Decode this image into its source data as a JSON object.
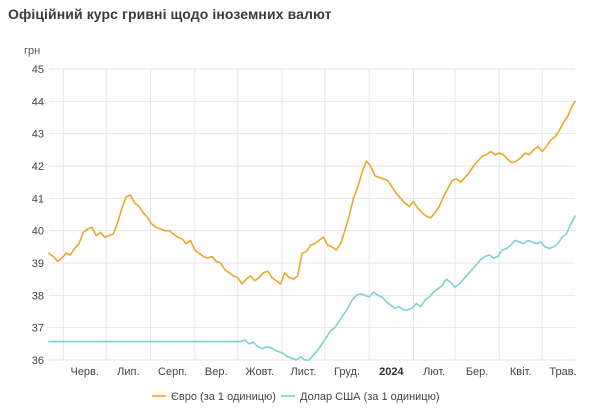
{
  "title": "Офіційний курс гривні щодо іноземних валют",
  "chart_data": {
    "type": "line",
    "ylabel": "грн",
    "ylim": [
      36,
      45
    ],
    "yticks": [
      36,
      37,
      38,
      39,
      40,
      41,
      42,
      43,
      44,
      45
    ],
    "xlim": [
      "2023-05-22",
      "2024-05-24"
    ],
    "xticks": [
      {
        "label": "Черв.",
        "date": "2023-06-01"
      },
      {
        "label": "Лип.",
        "date": "2023-07-01"
      },
      {
        "label": "Серп.",
        "date": "2023-08-01"
      },
      {
        "label": "Вер.",
        "date": "2023-09-01"
      },
      {
        "label": "Жовт.",
        "date": "2023-10-01"
      },
      {
        "label": "Лист.",
        "date": "2023-11-01"
      },
      {
        "label": "Груд.",
        "date": "2023-12-01"
      },
      {
        "label": "2024",
        "date": "2024-01-01",
        "bold": true
      },
      {
        "label": "Лют.",
        "date": "2024-02-01"
      },
      {
        "label": "Бер.",
        "date": "2024-03-01"
      },
      {
        "label": "Квіт.",
        "date": "2024-04-01"
      },
      {
        "label": "Трав.",
        "date": "2024-05-01"
      }
    ],
    "grid": true,
    "legend_position": "bottom",
    "series": [
      {
        "name": "Євро (за 1 одиницю)",
        "color": "#e8a82c",
        "points": [
          [
            "2023-05-22",
            39.3
          ],
          [
            "2023-05-25",
            39.2
          ],
          [
            "2023-05-28",
            39.05
          ],
          [
            "2023-05-31",
            39.15
          ],
          [
            "2023-06-03",
            39.3
          ],
          [
            "2023-06-06",
            39.25
          ],
          [
            "2023-06-09",
            39.45
          ],
          [
            "2023-06-12",
            39.6
          ],
          [
            "2023-06-15",
            39.95
          ],
          [
            "2023-06-18",
            40.05
          ],
          [
            "2023-06-21",
            40.1
          ],
          [
            "2023-06-24",
            39.85
          ],
          [
            "2023-06-27",
            39.95
          ],
          [
            "2023-06-30",
            39.8
          ],
          [
            "2023-07-03",
            39.85
          ],
          [
            "2023-07-06",
            39.9
          ],
          [
            "2023-07-09",
            40.25
          ],
          [
            "2023-07-12",
            40.7
          ],
          [
            "2023-07-15",
            41.05
          ],
          [
            "2023-07-18",
            41.1
          ],
          [
            "2023-07-21",
            40.85
          ],
          [
            "2023-07-24",
            40.75
          ],
          [
            "2023-07-27",
            40.55
          ],
          [
            "2023-07-30",
            40.4
          ],
          [
            "2023-08-02",
            40.2
          ],
          [
            "2023-08-05",
            40.1
          ],
          [
            "2023-08-08",
            40.05
          ],
          [
            "2023-08-11",
            40.0
          ],
          [
            "2023-08-14",
            40.0
          ],
          [
            "2023-08-17",
            39.9
          ],
          [
            "2023-08-20",
            39.8
          ],
          [
            "2023-08-23",
            39.75
          ],
          [
            "2023-08-26",
            39.6
          ],
          [
            "2023-08-29",
            39.7
          ],
          [
            "2023-09-01",
            39.4
          ],
          [
            "2023-09-04",
            39.3
          ],
          [
            "2023-09-07",
            39.2
          ],
          [
            "2023-09-10",
            39.15
          ],
          [
            "2023-09-13",
            39.2
          ],
          [
            "2023-09-16",
            39.05
          ],
          [
            "2023-09-19",
            39.0
          ],
          [
            "2023-09-22",
            38.8
          ],
          [
            "2023-09-25",
            38.7
          ],
          [
            "2023-09-28",
            38.6
          ],
          [
            "2023-10-01",
            38.55
          ],
          [
            "2023-10-04",
            38.35
          ],
          [
            "2023-10-07",
            38.5
          ],
          [
            "2023-10-10",
            38.6
          ],
          [
            "2023-10-13",
            38.45
          ],
          [
            "2023-10-16",
            38.55
          ],
          [
            "2023-10-19",
            38.7
          ],
          [
            "2023-10-22",
            38.75
          ],
          [
            "2023-10-25",
            38.55
          ],
          [
            "2023-10-28",
            38.45
          ],
          [
            "2023-10-31",
            38.35
          ],
          [
            "2023-11-03",
            38.7
          ],
          [
            "2023-11-06",
            38.55
          ],
          [
            "2023-11-09",
            38.5
          ],
          [
            "2023-11-12",
            38.6
          ],
          [
            "2023-11-15",
            39.3
          ],
          [
            "2023-11-18",
            39.35
          ],
          [
            "2023-11-21",
            39.55
          ],
          [
            "2023-11-24",
            39.6
          ],
          [
            "2023-11-27",
            39.7
          ],
          [
            "2023-11-30",
            39.8
          ],
          [
            "2023-12-03",
            39.55
          ],
          [
            "2023-12-06",
            39.5
          ],
          [
            "2023-12-09",
            39.4
          ],
          [
            "2023-12-12",
            39.6
          ],
          [
            "2023-12-15",
            40.0
          ],
          [
            "2023-12-18",
            40.45
          ],
          [
            "2023-12-21",
            41.0
          ],
          [
            "2023-12-24",
            41.35
          ],
          [
            "2023-12-27",
            41.8
          ],
          [
            "2023-12-30",
            42.15
          ],
          [
            "2024-01-02",
            42.0
          ],
          [
            "2024-01-05",
            41.7
          ],
          [
            "2024-01-08",
            41.65
          ],
          [
            "2024-01-11",
            41.6
          ],
          [
            "2024-01-14",
            41.55
          ],
          [
            "2024-01-17",
            41.35
          ],
          [
            "2024-01-20",
            41.15
          ],
          [
            "2024-01-23",
            41.0
          ],
          [
            "2024-01-26",
            40.85
          ],
          [
            "2024-01-29",
            40.75
          ],
          [
            "2024-02-01",
            40.9
          ],
          [
            "2024-02-04",
            40.7
          ],
          [
            "2024-02-07",
            40.55
          ],
          [
            "2024-02-10",
            40.45
          ],
          [
            "2024-02-13",
            40.4
          ],
          [
            "2024-02-16",
            40.55
          ],
          [
            "2024-02-19",
            40.75
          ],
          [
            "2024-02-22",
            41.05
          ],
          [
            "2024-02-25",
            41.3
          ],
          [
            "2024-02-28",
            41.55
          ],
          [
            "2024-03-02",
            41.6
          ],
          [
            "2024-03-05",
            41.5
          ],
          [
            "2024-03-08",
            41.65
          ],
          [
            "2024-03-11",
            41.8
          ],
          [
            "2024-03-14",
            42.0
          ],
          [
            "2024-03-17",
            42.15
          ],
          [
            "2024-03-20",
            42.3
          ],
          [
            "2024-03-23",
            42.35
          ],
          [
            "2024-03-26",
            42.45
          ],
          [
            "2024-03-29",
            42.35
          ],
          [
            "2024-04-01",
            42.4
          ],
          [
            "2024-04-04",
            42.35
          ],
          [
            "2024-04-07",
            42.2
          ],
          [
            "2024-04-10",
            42.1
          ],
          [
            "2024-04-13",
            42.15
          ],
          [
            "2024-04-16",
            42.25
          ],
          [
            "2024-04-19",
            42.4
          ],
          [
            "2024-04-22",
            42.35
          ],
          [
            "2024-04-25",
            42.5
          ],
          [
            "2024-04-28",
            42.6
          ],
          [
            "2024-05-01",
            42.45
          ],
          [
            "2024-05-04",
            42.6
          ],
          [
            "2024-05-07",
            42.8
          ],
          [
            "2024-05-10",
            42.9
          ],
          [
            "2024-05-13",
            43.1
          ],
          [
            "2024-05-16",
            43.35
          ],
          [
            "2024-05-19",
            43.55
          ],
          [
            "2024-05-22",
            43.85
          ],
          [
            "2024-05-24",
            44.0
          ]
        ]
      },
      {
        "name": "Долар США (за 1 одиницю)",
        "color": "#7fcfd3",
        "points": [
          [
            "2023-05-22",
            36.57
          ],
          [
            "2023-06-15",
            36.57
          ],
          [
            "2023-07-15",
            36.57
          ],
          [
            "2023-08-15",
            36.57
          ],
          [
            "2023-09-15",
            36.57
          ],
          [
            "2023-10-03",
            36.57
          ],
          [
            "2023-10-06",
            36.62
          ],
          [
            "2023-10-09",
            36.5
          ],
          [
            "2023-10-12",
            36.55
          ],
          [
            "2023-10-15",
            36.42
          ],
          [
            "2023-10-18",
            36.35
          ],
          [
            "2023-10-21",
            36.4
          ],
          [
            "2023-10-24",
            36.38
          ],
          [
            "2023-10-27",
            36.3
          ],
          [
            "2023-10-30",
            36.25
          ],
          [
            "2023-11-02",
            36.2
          ],
          [
            "2023-11-05",
            36.1
          ],
          [
            "2023-11-08",
            36.05
          ],
          [
            "2023-11-11",
            36.0
          ],
          [
            "2023-11-14",
            36.1
          ],
          [
            "2023-11-17",
            36.0
          ],
          [
            "2023-11-20",
            36.0
          ],
          [
            "2023-11-23",
            36.15
          ],
          [
            "2023-11-26",
            36.3
          ],
          [
            "2023-11-29",
            36.5
          ],
          [
            "2023-12-02",
            36.7
          ],
          [
            "2023-12-05",
            36.9
          ],
          [
            "2023-12-08",
            37.0
          ],
          [
            "2023-12-11",
            37.2
          ],
          [
            "2023-12-14",
            37.4
          ],
          [
            "2023-12-17",
            37.6
          ],
          [
            "2023-12-20",
            37.85
          ],
          [
            "2023-12-23",
            38.0
          ],
          [
            "2023-12-26",
            38.05
          ],
          [
            "2023-12-29",
            38.0
          ],
          [
            "2024-01-01",
            37.95
          ],
          [
            "2024-01-04",
            38.1
          ],
          [
            "2024-01-07",
            38.0
          ],
          [
            "2024-01-10",
            37.95
          ],
          [
            "2024-01-13",
            37.8
          ],
          [
            "2024-01-16",
            37.7
          ],
          [
            "2024-01-19",
            37.6
          ],
          [
            "2024-01-22",
            37.65
          ],
          [
            "2024-01-25",
            37.55
          ],
          [
            "2024-01-28",
            37.55
          ],
          [
            "2024-01-31",
            37.6
          ],
          [
            "2024-02-03",
            37.75
          ],
          [
            "2024-02-06",
            37.65
          ],
          [
            "2024-02-09",
            37.85
          ],
          [
            "2024-02-12",
            37.95
          ],
          [
            "2024-02-15",
            38.1
          ],
          [
            "2024-02-18",
            38.2
          ],
          [
            "2024-02-21",
            38.3
          ],
          [
            "2024-02-24",
            38.5
          ],
          [
            "2024-02-27",
            38.4
          ],
          [
            "2024-03-01",
            38.25
          ],
          [
            "2024-03-04",
            38.35
          ],
          [
            "2024-03-07",
            38.5
          ],
          [
            "2024-03-10",
            38.65
          ],
          [
            "2024-03-13",
            38.8
          ],
          [
            "2024-03-16",
            38.95
          ],
          [
            "2024-03-19",
            39.1
          ],
          [
            "2024-03-22",
            39.2
          ],
          [
            "2024-03-25",
            39.25
          ],
          [
            "2024-03-28",
            39.15
          ],
          [
            "2024-03-31",
            39.2
          ],
          [
            "2024-04-03",
            39.4
          ],
          [
            "2024-04-06",
            39.45
          ],
          [
            "2024-04-09",
            39.55
          ],
          [
            "2024-04-12",
            39.7
          ],
          [
            "2024-04-15",
            39.65
          ],
          [
            "2024-04-18",
            39.6
          ],
          [
            "2024-04-21",
            39.7
          ],
          [
            "2024-04-24",
            39.65
          ],
          [
            "2024-04-27",
            39.6
          ],
          [
            "2024-04-30",
            39.65
          ],
          [
            "2024-05-03",
            39.5
          ],
          [
            "2024-05-06",
            39.45
          ],
          [
            "2024-05-09",
            39.5
          ],
          [
            "2024-05-12",
            39.6
          ],
          [
            "2024-05-15",
            39.8
          ],
          [
            "2024-05-18",
            39.9
          ],
          [
            "2024-05-21",
            40.2
          ],
          [
            "2024-05-24",
            40.45
          ]
        ]
      }
    ]
  }
}
